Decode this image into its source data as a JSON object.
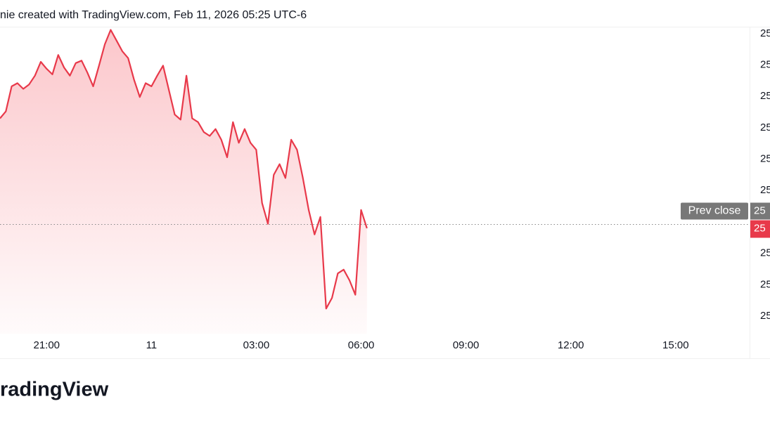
{
  "chart_data": {
    "type": "area",
    "subtitle": "nie created with TradingView.com, Feb 11, 2026 05:25 UTC-6",
    "brand": "radingView",
    "x": [
      "19:40",
      "19:50",
      "20:00",
      "20:10",
      "20:20",
      "20:30",
      "20:40",
      "20:50",
      "21:00",
      "21:10",
      "21:20",
      "21:30",
      "21:40",
      "21:50",
      "22:00",
      "22:10",
      "22:20",
      "22:30",
      "22:40",
      "22:50",
      "23:00",
      "23:10",
      "23:20",
      "23:30",
      "23:40",
      "23:50",
      "00:00",
      "00:10",
      "00:20",
      "00:30",
      "00:40",
      "00:50",
      "01:00",
      "01:10",
      "01:20",
      "01:30",
      "01:40",
      "01:50",
      "02:00",
      "02:10",
      "02:20",
      "02:30",
      "02:40",
      "02:50",
      "03:00",
      "03:10",
      "03:20",
      "03:30",
      "03:40",
      "03:50",
      "04:00",
      "04:10",
      "04:20",
      "04:30",
      "04:40",
      "04:50",
      "05:00",
      "05:10",
      "05:20",
      "05:30",
      "05:40",
      "05:50",
      "06:00",
      "06:10"
    ],
    "series": [
      {
        "name": "Price",
        "color": "#e8394a",
        "values": [
          25315,
          25326,
          25366,
          25371,
          25362,
          25369,
          25383,
          25405,
          25394,
          25385,
          25416,
          25396,
          25383,
          25403,
          25407,
          25388,
          25366,
          25399,
          25433,
          25456,
          25439,
          25422,
          25411,
          25377,
          25349,
          25371,
          25366,
          25383,
          25399,
          25360,
          25321,
          25313,
          25383,
          25315,
          25309,
          25293,
          25287,
          25298,
          25281,
          25253,
          25309,
          25276,
          25298,
          25276,
          25265,
          25180,
          25147,
          25225,
          25242,
          25220,
          25281,
          25265,
          25220,
          25169,
          25130,
          25158,
          25012,
          25029,
          25068,
          25074,
          25057,
          25034,
          25169,
          25140
        ]
      }
    ],
    "xlim": [
      "19:40",
      "17:07"
    ],
    "xticks": [
      "21:00",
      {
        "value": "00:00",
        "label": "11"
      },
      "03:00",
      "06:00",
      "09:00",
      "12:00",
      "15:00"
    ],
    "ylim": [
      24972,
      25461
    ],
    "yticks": [
      {
        "value": 25450,
        "label": "25"
      },
      {
        "value": 25400,
        "label": "25"
      },
      {
        "value": 25350,
        "label": "25"
      },
      {
        "value": 25300,
        "label": "25"
      },
      {
        "value": 25250,
        "label": "25"
      },
      {
        "value": 25200,
        "label": "25"
      },
      {
        "value": 25100,
        "label": "25"
      },
      {
        "value": 25050,
        "label": "25"
      },
      {
        "value": 25000,
        "label": "25"
      }
    ],
    "prev_close": {
      "name": "Prev close",
      "value": 25146,
      "label": "25"
    },
    "last_price_label": "25"
  }
}
